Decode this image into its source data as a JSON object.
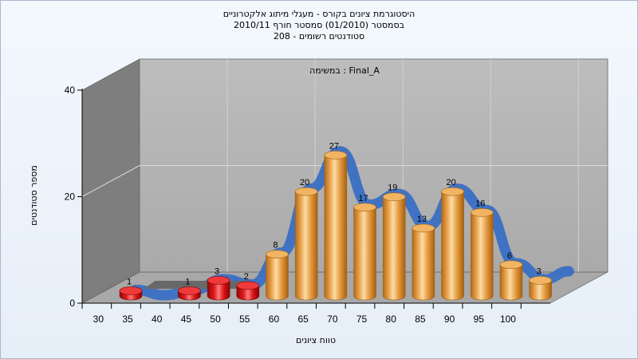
{
  "header": {
    "title_line1": "היסטוגרמת ציונים בקורס - מעגלי מיתוג אלקטרוניים",
    "title_line2": "בסמסטר  (01/2010)  סמסטר חורף  2010/11",
    "title_line3": "סטודנטים רשומים - 208"
  },
  "chart_data": {
    "type": "bar",
    "legend_label": "במשימה : Final_A",
    "xlabel": "טווח ציונים",
    "ylabel": "מספר סטודנטים",
    "ylim": [
      0,
      40
    ],
    "y_ticks": [
      "0",
      "20",
      "40"
    ],
    "x_ticks": [
      "30",
      "35",
      "40",
      "45",
      "50",
      "55",
      "60",
      "65",
      "70",
      "75",
      "80",
      "85",
      "90",
      "95",
      "100"
    ],
    "grid": true,
    "series": [
      {
        "values": [
          {
            "x": "30",
            "y": 1,
            "label": "1",
            "color": "#e02020"
          },
          {
            "x": "40",
            "y": 1,
            "label": "1",
            "color": "#e02020"
          },
          {
            "x": "45",
            "y": 3,
            "label": "3",
            "color": "#e02020"
          },
          {
            "x": "50",
            "y": 2,
            "label": "2",
            "color": "#e02020"
          },
          {
            "x": "55",
            "y": 8,
            "label": "8",
            "color": "#e8a040"
          },
          {
            "x": "60",
            "y": 20,
            "label": "20",
            "color": "#e8a040"
          },
          {
            "x": "65",
            "y": 27,
            "label": "27",
            "color": "#e8a040"
          },
          {
            "x": "70",
            "y": 17,
            "label": "17",
            "color": "#e8a040"
          },
          {
            "x": "75",
            "y": 19,
            "label": "19",
            "color": "#e8a040"
          },
          {
            "x": "80",
            "y": 13,
            "label": "13",
            "color": "#e8a040"
          },
          {
            "x": "85",
            "y": 20,
            "label": "20",
            "color": "#e8a040"
          },
          {
            "x": "90",
            "y": 16,
            "label": "16",
            "color": "#e8a040"
          },
          {
            "x": "95",
            "y": 6,
            "label": "6",
            "color": "#e8a040"
          },
          {
            "x": "100",
            "y": 3,
            "label": "3",
            "color": "#e8a040"
          }
        ]
      }
    ],
    "curve_color": "#3a6fc4",
    "wall_color": "#b4b4b4",
    "side_wall_color": "#7e7e7e",
    "floor_color": "#a8a8a8"
  }
}
